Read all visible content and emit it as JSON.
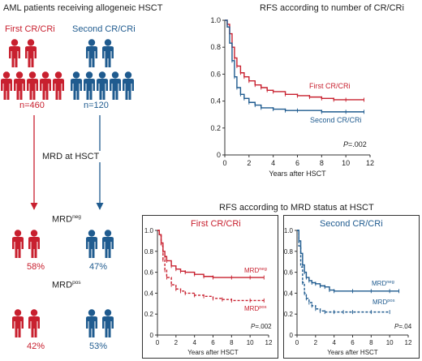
{
  "header": {
    "title": "AML patients receiving allogeneic HSCT",
    "group_first": "First CR/CRi",
    "group_second": "Second CR/CRi",
    "n_first": "n=460",
    "n_second": "n=120"
  },
  "flow": {
    "mrd_at_hsct": "MRD at HSCT",
    "mrd_neg_main": "MRD",
    "mrd_neg_sup": "neg",
    "mrd_pos_main": "MRD",
    "mrd_pos_sup": "pos",
    "neg_first_pct": "58%",
    "neg_second_pct": "47%",
    "pos_first_pct": "42%",
    "pos_second_pct": "53%"
  },
  "colors": {
    "red": "#c8202f",
    "blue": "#1f5b8f"
  },
  "icons": {
    "person": "person-icon"
  },
  "chart_data": [
    {
      "type": "line",
      "title": "RFS according to number of CR/CRi",
      "xlabel": "Years after HSCT",
      "ylabel": "",
      "xlim": [
        0,
        12
      ],
      "ylim": [
        0,
        1.0
      ],
      "x_ticks": [
        "0",
        "2",
        "4",
        "6",
        "8",
        "10",
        "12"
      ],
      "y_ticks": [
        "0",
        "0.2",
        "0.4",
        "0.6",
        "0.8",
        "1.0"
      ],
      "pvalue": "P=.002",
      "series": [
        {
          "name": "First CR/CRi",
          "style": "solid",
          "color": "#c8202f",
          "x": [
            0,
            0.2,
            0.4,
            0.6,
            0.8,
            1.0,
            1.3,
            1.6,
            2.0,
            2.5,
            3.0,
            3.5,
            4.0,
            5.0,
            6.0,
            7.0,
            8.0,
            9.0,
            10.0,
            11.5
          ],
          "y": [
            1.0,
            0.97,
            0.9,
            0.8,
            0.72,
            0.66,
            0.61,
            0.58,
            0.55,
            0.52,
            0.5,
            0.48,
            0.47,
            0.45,
            0.44,
            0.43,
            0.42,
            0.41,
            0.41,
            0.41
          ]
        },
        {
          "name": "Second CR/CRi",
          "style": "solid",
          "color": "#1f5b8f",
          "x": [
            0,
            0.2,
            0.4,
            0.6,
            0.8,
            1.0,
            1.3,
            1.6,
            2.0,
            2.5,
            3.0,
            4.0,
            5.0,
            6.0,
            8.0,
            10.0,
            11.5
          ],
          "y": [
            1.0,
            0.95,
            0.83,
            0.7,
            0.58,
            0.5,
            0.45,
            0.42,
            0.39,
            0.37,
            0.35,
            0.34,
            0.33,
            0.33,
            0.32,
            0.32,
            0.32
          ]
        }
      ]
    },
    {
      "type": "line",
      "title": "RFS according to MRD status at HSCT",
      "panel_title": "First CR/CRi",
      "xlabel": "Years after HSCT",
      "ylabel": "",
      "xlim": [
        0,
        12
      ],
      "ylim": [
        0,
        1.0
      ],
      "x_ticks": [
        "0",
        "2",
        "4",
        "6",
        "8",
        "10",
        "12"
      ],
      "y_ticks": [
        "0",
        "0.2",
        "0.4",
        "0.6",
        "0.8",
        "1.0"
      ],
      "pvalue": "P=.002",
      "series": [
        {
          "name": "MRDneg",
          "style": "solid",
          "color": "#c8202f",
          "x": [
            0,
            0.2,
            0.4,
            0.6,
            0.8,
            1.0,
            1.5,
            2.0,
            2.5,
            3.0,
            4.0,
            5.0,
            6.0,
            8.0,
            10.0,
            11.5
          ],
          "y": [
            1.0,
            0.96,
            0.88,
            0.8,
            0.75,
            0.71,
            0.66,
            0.63,
            0.61,
            0.6,
            0.58,
            0.56,
            0.55,
            0.55,
            0.55,
            0.55
          ]
        },
        {
          "name": "MRDpos",
          "style": "dashed",
          "color": "#c8202f",
          "x": [
            0,
            0.2,
            0.4,
            0.6,
            0.8,
            1.0,
            1.5,
            2.0,
            2.5,
            3.0,
            4.0,
            5.0,
            6.0,
            7.0,
            8.0,
            10.0,
            11.5
          ],
          "y": [
            1.0,
            0.95,
            0.85,
            0.72,
            0.62,
            0.55,
            0.48,
            0.44,
            0.42,
            0.4,
            0.38,
            0.37,
            0.35,
            0.34,
            0.33,
            0.33,
            0.33
          ]
        }
      ]
    },
    {
      "type": "line",
      "title": "RFS according to MRD status at HSCT",
      "panel_title": "Second CR/CRi",
      "xlabel": "Years after HSCT",
      "ylabel": "",
      "xlim": [
        0,
        12
      ],
      "ylim": [
        0,
        1.0
      ],
      "x_ticks": [
        "0",
        "2",
        "4",
        "6",
        "8",
        "10",
        "12"
      ],
      "y_ticks": [
        "0",
        "0.2",
        "0.4",
        "0.6",
        "0.8",
        "1.0"
      ],
      "pvalue": "P=.04",
      "series": [
        {
          "name": "MRDneg",
          "style": "solid",
          "color": "#1f5b8f",
          "x": [
            0,
            0.2,
            0.4,
            0.6,
            0.8,
            1.0,
            1.3,
            1.6,
            2.0,
            2.5,
            3.0,
            3.5,
            4.0,
            6.0,
            8.0,
            10.0,
            11.0
          ],
          "y": [
            1.0,
            0.9,
            0.78,
            0.67,
            0.6,
            0.55,
            0.52,
            0.5,
            0.49,
            0.47,
            0.46,
            0.43,
            0.42,
            0.42,
            0.42,
            0.42,
            0.42
          ]
        },
        {
          "name": "MRDpos",
          "style": "dashed",
          "color": "#1f5b8f",
          "x": [
            0,
            0.2,
            0.4,
            0.6,
            0.8,
            1.0,
            1.3,
            1.6,
            2.0,
            2.5,
            3.0,
            4.0,
            5.0,
            6.0,
            8.0,
            10.0
          ],
          "y": [
            1.0,
            0.85,
            0.65,
            0.5,
            0.4,
            0.35,
            0.31,
            0.28,
            0.25,
            0.23,
            0.22,
            0.22,
            0.22,
            0.22,
            0.22,
            0.22
          ]
        }
      ]
    }
  ]
}
